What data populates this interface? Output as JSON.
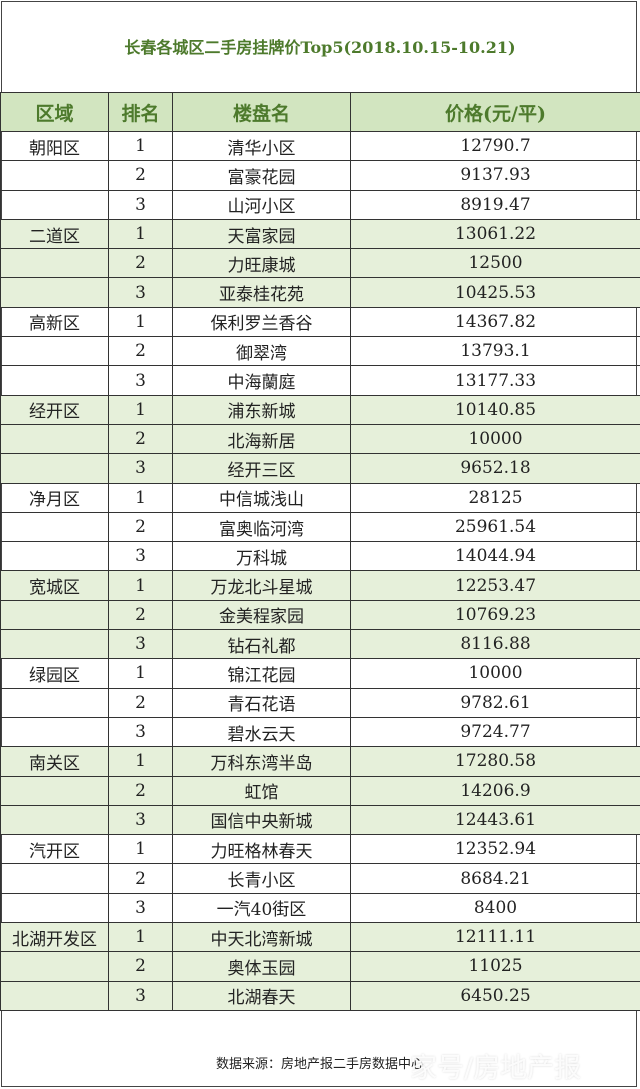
{
  "title": "长春各城区二手房挂牌价Top5(2018.10.15-10.21)",
  "headers": [
    "区域",
    "排名",
    "楼盘名",
    "价格(元/平)"
  ],
  "groups": [
    {
      "district": "朝阳区",
      "rows": [
        [
          "1",
          "清华小区",
          "12790.7"
        ],
        [
          "2",
          "富豪花园",
          "9137.93"
        ],
        [
          "3",
          "山河小区",
          "8919.47"
        ]
      ]
    },
    {
      "district": "二道区",
      "rows": [
        [
          "1",
          "天富家园",
          "13061.22"
        ],
        [
          "2",
          "力旺康城",
          "12500"
        ],
        [
          "3",
          "亚泰桂花苑",
          "10425.53"
        ]
      ]
    },
    {
      "district": "高新区",
      "rows": [
        [
          "1",
          "保利罗兰香谷",
          "14367.82"
        ],
        [
          "2",
          "御翠湾",
          "13793.1"
        ],
        [
          "3",
          "中海蘭庭",
          "13177.33"
        ]
      ]
    },
    {
      "district": "经开区",
      "rows": [
        [
          "1",
          "浦东新城",
          "10140.85"
        ],
        [
          "2",
          "北海新居",
          "10000"
        ],
        [
          "3",
          "经开三区",
          "9652.18"
        ]
      ]
    },
    {
      "district": "净月区",
      "rows": [
        [
          "1",
          "中信城浅山",
          "28125"
        ],
        [
          "2",
          "富奥临河湾",
          "25961.54"
        ],
        [
          "3",
          "万科城",
          "14044.94"
        ]
      ]
    },
    {
      "district": "宽城区",
      "rows": [
        [
          "1",
          "万龙北斗星城",
          "12253.47"
        ],
        [
          "2",
          "金美程家园",
          "10769.23"
        ],
        [
          "3",
          "钻石礼都",
          "8116.88"
        ]
      ]
    },
    {
      "district": "绿园区",
      "rows": [
        [
          "1",
          "锦江花园",
          "10000"
        ],
        [
          "2",
          "青石花语",
          "9782.61"
        ],
        [
          "3",
          "碧水云天",
          "9724.77"
        ]
      ]
    },
    {
      "district": "南关区",
      "rows": [
        [
          "1",
          "万科东湾半岛",
          "17280.58"
        ],
        [
          "2",
          "虹馆",
          "14206.9"
        ],
        [
          "3",
          "国信中央新城",
          "12443.61"
        ]
      ]
    },
    {
      "district": "汽开区",
      "rows": [
        [
          "1",
          "力旺格林春天",
          "12352.94"
        ],
        [
          "2",
          "长青小区",
          "8684.21"
        ],
        [
          "3",
          "一汽40街区",
          "8400"
        ]
      ]
    },
    {
      "district": "北湖开发区",
      "rows": [
        [
          "1",
          "中天北湾新城",
          "12111.11"
        ],
        [
          "2",
          "奥体玉园",
          "11025"
        ],
        [
          "3",
          "北湖春天",
          "6450.25"
        ]
      ]
    }
  ],
  "footer": "数据来源：房地产报二手房数据中心",
  "watermark": "百家号/房地产报",
  "colors": {
    "header_bg": "#d2e5c0",
    "alt_row_bg": "#e6f0da",
    "title": "#4d7a2c"
  }
}
